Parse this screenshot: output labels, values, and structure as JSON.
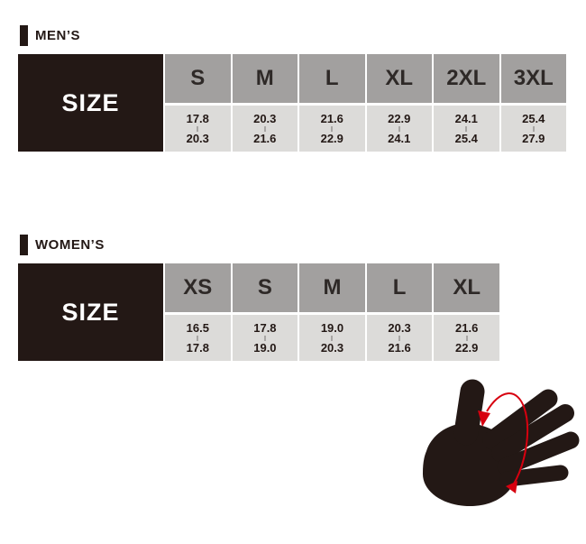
{
  "colors": {
    "ink": "#231815",
    "header_gray": "#a2a09f",
    "cell_gray": "#dcdbd9",
    "tick_gray": "#a8a6a4",
    "accent_red": "#d7000f",
    "background": "#ffffff"
  },
  "chart_data": [
    {
      "type": "table",
      "title": "MEN’S",
      "row_label": "SIZE",
      "categories": [
        "S",
        "M",
        "L",
        "XL",
        "2XL",
        "3XL"
      ],
      "ranges_cm": [
        [
          "17.8",
          "20.3"
        ],
        [
          "20.3",
          "21.6"
        ],
        [
          "21.6",
          "22.9"
        ],
        [
          "22.9",
          "24.1"
        ],
        [
          "24.1",
          "25.4"
        ],
        [
          "25.4",
          "27.9"
        ]
      ],
      "layout_hint": "black SIZE header cell left, gray size columns, each cell shows min–max hand circumference"
    },
    {
      "type": "table",
      "title": "WOMEN’S",
      "row_label": "SIZE",
      "categories": [
        "XS",
        "S",
        "M",
        "L",
        "XL"
      ],
      "ranges_cm": [
        [
          "16.5",
          "17.8"
        ],
        [
          "17.8",
          "19.0"
        ],
        [
          "19.0",
          "20.3"
        ],
        [
          "20.3",
          "21.6"
        ],
        [
          "21.6",
          "22.9"
        ]
      ],
      "layout_hint": "black SIZE header cell left, gray size columns, each cell shows min–max hand circumference"
    }
  ],
  "hand_illustration": {
    "name": "hand-circumference-measurement",
    "description": "black hand silhouette with red loop and arrows indicating palm circumference measurement"
  }
}
